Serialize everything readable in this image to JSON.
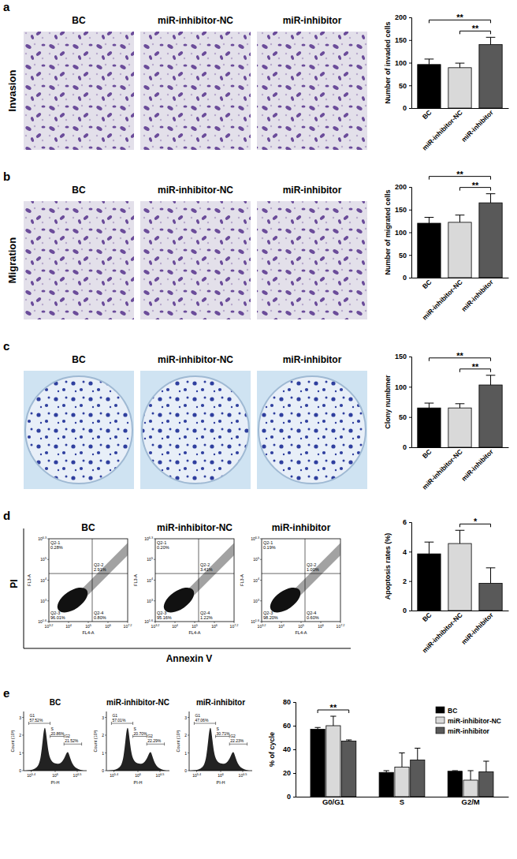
{
  "chart_data": [
    {
      "type": "bar",
      "y_label": "Number of invaded cells",
      "categories": [
        "BC",
        "miR-inhibitor-NC",
        "miR-inhibitor"
      ],
      "values": [
        96,
        89,
        140
      ],
      "errors": [
        12,
        10,
        16
      ],
      "colors": [
        "#000000",
        "#d9d9d9",
        "#595959"
      ],
      "ylim": [
        0,
        200
      ],
      "yticks": [
        0,
        50,
        100,
        150,
        200
      ],
      "annotations": [
        {
          "text": "**",
          "between": [
            0,
            2
          ]
        },
        {
          "text": "**",
          "between": [
            1,
            2
          ]
        }
      ]
    },
    {
      "type": "bar",
      "y_label": "Number of migrated cells",
      "categories": [
        "BC",
        "miR-inhibitor-NC",
        "miR-inhibitor"
      ],
      "values": [
        120,
        122,
        165
      ],
      "errors": [
        13,
        16,
        20
      ],
      "colors": [
        "#000000",
        "#d9d9d9",
        "#595959"
      ],
      "ylim": [
        0,
        200
      ],
      "yticks": [
        0,
        50,
        100,
        150,
        200
      ],
      "annotations": [
        {
          "text": "**",
          "between": [
            0,
            2
          ]
        },
        {
          "text": "**",
          "between": [
            1,
            2
          ]
        }
      ]
    },
    {
      "type": "bar",
      "y_label": "Clony numbmer",
      "categories": [
        "BC",
        "miR-inhibitor-NC",
        "miR-inhibitor"
      ],
      "values": [
        65,
        65,
        103
      ],
      "errors": [
        8,
        7,
        16
      ],
      "colors": [
        "#000000",
        "#d9d9d9",
        "#595959"
      ],
      "ylim": [
        0,
        150
      ],
      "yticks": [
        0,
        50,
        100,
        150
      ],
      "annotations": [
        {
          "text": "**",
          "between": [
            0,
            2
          ]
        },
        {
          "text": "**",
          "between": [
            1,
            2
          ]
        }
      ]
    },
    {
      "type": "bar",
      "y_label": "Apoptosis rates (%)",
      "categories": [
        "BC",
        "miR-inhibitor-NC",
        "miR-inhibitor"
      ],
      "values": [
        3.85,
        4.55,
        1.85
      ],
      "errors": [
        0.8,
        0.9,
        1.05
      ],
      "colors": [
        "#000000",
        "#d9d9d9",
        "#595959"
      ],
      "ylim": [
        0,
        6
      ],
      "yticks": [
        0,
        2,
        4,
        6
      ],
      "annotations": [
        {
          "text": "*",
          "between": [
            1,
            2
          ]
        }
      ]
    },
    {
      "type": "bar",
      "y_label": "% of cycle",
      "categories": [
        "G0/G1",
        "S",
        "G2/M"
      ],
      "series": [
        {
          "name": "BC",
          "color": "#000000",
          "values": [
            57,
            20.5,
            21.5
          ],
          "errors": [
            1.5,
            1.5,
            0.5
          ]
        },
        {
          "name": "miR-inhibitor-NC",
          "color": "#d9d9d9",
          "values": [
            60,
            25,
            14
          ],
          "errors": [
            8,
            12,
            8
          ]
        },
        {
          "name": "miR-inhibitor",
          "color": "#595959",
          "values": [
            47,
            31,
            21
          ],
          "errors": [
            1,
            10,
            9
          ]
        }
      ],
      "legend": "upper right",
      "ylim": [
        0,
        80
      ],
      "yticks": [
        0,
        20,
        40,
        60,
        80
      ],
      "annotations": [
        {
          "text": "**",
          "category": 0,
          "between": [
            0,
            2
          ]
        }
      ]
    }
  ],
  "panels": [
    {
      "letter": "a",
      "row_label": "Invasion",
      "image_titles": [
        "BC",
        "miR-inhibitor-NC",
        "miR-inhibitor"
      ]
    },
    {
      "letter": "b",
      "row_label": "Migration",
      "image_titles": [
        "BC",
        "miR-inhibitor-NC",
        "miR-inhibitor"
      ]
    },
    {
      "letter": "c",
      "image_titles": [
        "BC",
        "miR-inhibitor-NC",
        "miR-inhibitor"
      ]
    },
    {
      "letter": "d",
      "image_titles": [
        "BC",
        "miR-inhibitor-NC",
        "miR-inhibitor"
      ],
      "y_title": "PI",
      "x_title": "Annexin V",
      "plot_x_axis": "FL4-A",
      "plot_y_axis": "FL3-A",
      "x_ticks": [
        {
          "base": "10",
          "exp": "3.2"
        },
        {
          "base": "10",
          "exp": "4"
        },
        {
          "base": "10",
          "exp": "5"
        },
        {
          "base": "10",
          "exp": "6"
        },
        {
          "base": "10",
          "exp": "7.2"
        }
      ],
      "y_ticks": [
        {
          "base": "10",
          "exp": "1.6"
        },
        {
          "base": "10",
          "exp": "3"
        },
        {
          "base": "10",
          "exp": "4"
        },
        {
          "base": "10",
          "exp": "5"
        },
        {
          "base": "10",
          "exp": "6.3"
        }
      ],
      "plots": [
        {
          "quadrants": [
            {
              "name": "Q2-1",
              "value": "0.28%"
            },
            {
              "name": "Q2-2",
              "value": "2.91%"
            },
            {
              "name": "Q2-3",
              "value": "96.01%"
            },
            {
              "name": "Q2-4",
              "value": "0.80%"
            }
          ]
        },
        {
          "quadrants": [
            {
              "name": "Q2-1",
              "value": "0.20%"
            },
            {
              "name": "Q2-2",
              "value": "3.41%"
            },
            {
              "name": "Q2-3",
              "value": "95.16%"
            },
            {
              "name": "Q2-4",
              "value": "1.22%"
            }
          ]
        },
        {
          "quadrants": [
            {
              "name": "Q2-1",
              "value": "0.19%"
            },
            {
              "name": "Q2-2",
              "value": "1.00%"
            },
            {
              "name": "Q2-3",
              "value": "98.20%"
            },
            {
              "name": "Q2-4",
              "value": "0.60%"
            }
          ]
        }
      ]
    },
    {
      "letter": "e",
      "image_titles": [
        "BC",
        "miR-inhibitor-NC",
        "miR-inhibitor"
      ],
      "plot_x_axis": "PI-H",
      "plot_y_axis": "Count (10³)",
      "x_ticks": [
        {
          "base": "10",
          "exp": "5.4"
        },
        {
          "base": "10",
          "exp": "6"
        },
        {
          "base": "10",
          "exp": "6.5"
        }
      ],
      "y_ticks": [
        "0",
        "1",
        "2",
        "3"
      ],
      "plots": [
        {
          "gates": [
            {
              "name": "G1",
              "value": "57.52%"
            },
            {
              "name": "S",
              "value": "20.86%"
            },
            {
              "name": "G2",
              "value": "21.52%"
            }
          ]
        },
        {
          "gates": [
            {
              "name": "G1",
              "value": "57.01%"
            },
            {
              "name": "S",
              "value": "20.70%"
            },
            {
              "name": "G2",
              "value": "22.29%"
            }
          ]
        },
        {
          "gates": [
            {
              "name": "G1",
              "value": "47.06%"
            },
            {
              "name": "S",
              "value": "30.71%"
            },
            {
              "name": "G2",
              "value": "22.23%"
            }
          ]
        }
      ]
    }
  ]
}
